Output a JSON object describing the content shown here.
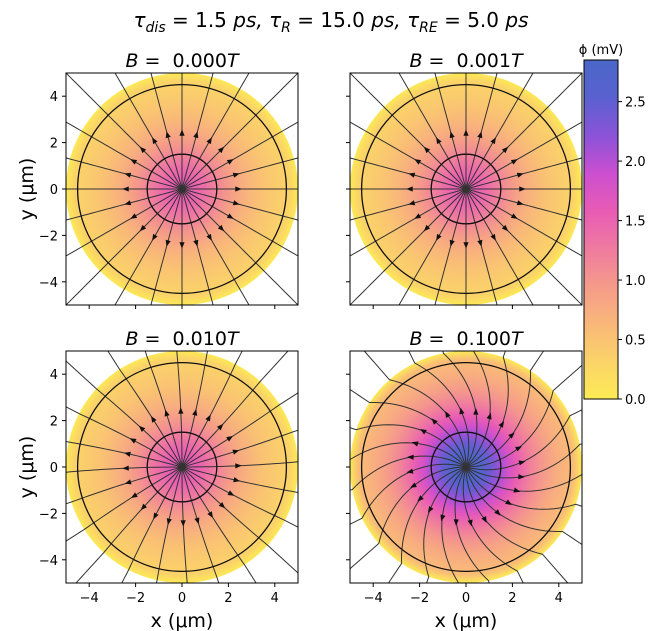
{
  "chart_data": {
    "type": "heatmap",
    "title": "τ_dis = 1.5ps, τ_R = 15.0ps, τ_RE = 5.0ps",
    "title_parts": [
      {
        "sym": "τ",
        "sub": "dis",
        "val": "= 1.5",
        "unit": "ps",
        "sep": ","
      },
      {
        "sym": "τ",
        "sub": "R",
        "val": "= 15.0",
        "unit": "ps",
        "sep": ","
      },
      {
        "sym": "τ",
        "sub": "RE",
        "val": "= 5.0",
        "unit": "ps",
        "sep": ""
      }
    ],
    "xlabel": "x (μm)",
    "ylabel": "y (μm)",
    "xlim": [
      -5,
      5
    ],
    "ylim": [
      -5,
      5
    ],
    "xticks": [
      -4,
      -2,
      0,
      2,
      4
    ],
    "yticks": [
      -4,
      -2,
      0,
      2,
      4
    ],
    "disk_radius": 5,
    "contour_radii": [
      1.5,
      4.5
    ],
    "num_field_lines": 24,
    "colorbar": {
      "label": "ϕ (mV)",
      "min": 0.0,
      "max": 2.85,
      "ticks": [
        0.0,
        0.5,
        1.0,
        1.5,
        2.0,
        2.5
      ],
      "tick_labels": [
        "0.0",
        "0.5",
        "1.0",
        "1.5",
        "2.0",
        "2.5"
      ],
      "colors": [
        "#fceb55",
        "#fbd368",
        "#f9b77a",
        "#f59a8a",
        "#ef7aa0",
        "#e85bb5",
        "#cb4fd0",
        "#8a53d8",
        "#5a61d0",
        "#4a67c7"
      ]
    },
    "panels": [
      {
        "B": 0.0,
        "label": "B = 0.000T",
        "center_value": 1.6,
        "field_twist": 0.0
      },
      {
        "B": 0.001,
        "label": "B = 0.001T",
        "center_value": 1.6,
        "field_twist": 0.0
      },
      {
        "B": 0.01,
        "label": "B = 0.010T",
        "center_value": 1.65,
        "field_twist": 0.02
      },
      {
        "B": 0.1,
        "label": "B = 0.100T",
        "center_value": 2.85,
        "field_twist": 0.32
      }
    ]
  }
}
